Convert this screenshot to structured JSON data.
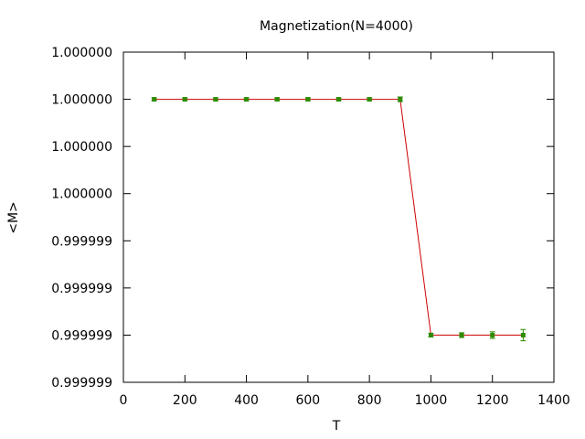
{
  "chart_data": {
    "type": "line",
    "title": "Magnetization(N=4000)",
    "xlabel": "T",
    "ylabel": "<M>",
    "xlim": [
      0,
      1400
    ],
    "ylim": [
      0,
      7
    ],
    "x_ticks": [
      {
        "value": 0,
        "label": "0"
      },
      {
        "value": 200,
        "label": "200"
      },
      {
        "value": 400,
        "label": "400"
      },
      {
        "value": 600,
        "label": "600"
      },
      {
        "value": 800,
        "label": "800"
      },
      {
        "value": 1000,
        "label": "1000"
      },
      {
        "value": 1200,
        "label": "1200"
      },
      {
        "value": 1400,
        "label": "1400"
      }
    ],
    "y_ticks": [
      {
        "value": 7,
        "label": "1.000000"
      },
      {
        "value": 6,
        "label": "1.000000"
      },
      {
        "value": 5,
        "label": "1.000000"
      },
      {
        "value": 4,
        "label": "1.000000"
      },
      {
        "value": 3,
        "label": "0.999999"
      },
      {
        "value": 2,
        "label": "0.999999"
      },
      {
        "value": 1,
        "label": "0.999999"
      },
      {
        "value": 0,
        "label": "0.999999"
      }
    ],
    "grid": false,
    "legend": "none",
    "series": [
      {
        "line_color": "#cc0000",
        "marker_color": "#2e8b00",
        "points": [
          {
            "x": 100,
            "y": 6.0,
            "err": 0.03
          },
          {
            "x": 200,
            "y": 6.0,
            "err": 0.03
          },
          {
            "x": 300,
            "y": 6.0,
            "err": 0.03
          },
          {
            "x": 400,
            "y": 6.0,
            "err": 0.03
          },
          {
            "x": 500,
            "y": 6.0,
            "err": 0.03
          },
          {
            "x": 600,
            "y": 6.0,
            "err": 0.03
          },
          {
            "x": 700,
            "y": 6.0,
            "err": 0.03
          },
          {
            "x": 800,
            "y": 6.0,
            "err": 0.03
          },
          {
            "x": 900,
            "y": 6.0,
            "err": 0.05
          },
          {
            "x": 1000,
            "y": 1.0,
            "err": 0.04
          },
          {
            "x": 1100,
            "y": 1.0,
            "err": 0.05
          },
          {
            "x": 1200,
            "y": 1.0,
            "err": 0.07
          },
          {
            "x": 1300,
            "y": 1.0,
            "err": 0.12
          }
        ]
      }
    ]
  }
}
